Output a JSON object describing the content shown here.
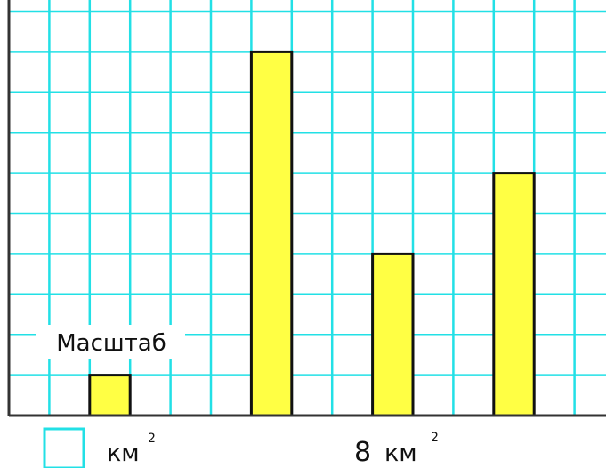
{
  "chart_data": {
    "type": "bar",
    "colors": {
      "grid": "#22e0e6",
      "bar_fill": "#ffff44",
      "bar_stroke": "#111111",
      "axis": "#333333"
    },
    "grid": true,
    "unit_squares_y": 9,
    "bars": [
      {
        "label": "Масштаб",
        "value": 1
      },
      {
        "label": "",
        "value": 9
      },
      {
        "label": "",
        "value": 4
      },
      {
        "label": "",
        "value": 6
      }
    ]
  },
  "legend": {
    "swatch_icon": "square-outline",
    "unit_text": "км",
    "unit_superscript": "2",
    "scale_value": "8",
    "scale_unit_text": "км",
    "scale_superscript": "2"
  }
}
